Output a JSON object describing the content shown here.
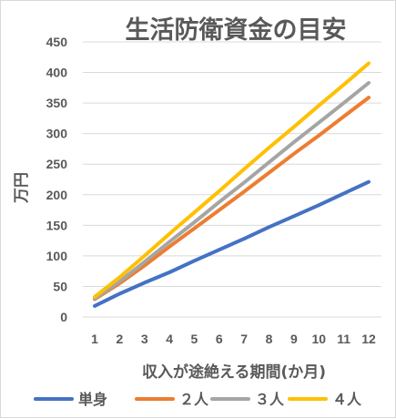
{
  "chart_data": {
    "type": "line",
    "title": "生活防衛資金の目安",
    "xlabel": "収入が途絶える期間(か月)",
    "ylabel": "万円",
    "x": [
      1,
      2,
      3,
      4,
      5,
      6,
      7,
      8,
      9,
      10,
      11,
      12
    ],
    "xticks": [
      "1",
      "2",
      "3",
      "4",
      "5",
      "6",
      "7",
      "8",
      "9",
      "10",
      "11",
      "12"
    ],
    "ylim": [
      0,
      450
    ],
    "yticks": [
      "0",
      "50",
      "100",
      "150",
      "200",
      "250",
      "300",
      "350",
      "400",
      "450"
    ],
    "grid": true,
    "legend_position": "bottom",
    "series": [
      {
        "name": "単身",
        "color": "#4472c4",
        "values": [
          18,
          38,
          56,
          73,
          92,
          110,
          128,
          147,
          165,
          183,
          202,
          221
        ]
      },
      {
        "name": "２人",
        "color": "#ed7d31",
        "values": [
          29,
          55,
          84,
          115,
          145,
          175,
          205,
          236,
          267,
          297,
          328,
          359
        ]
      },
      {
        "name": "３人",
        "color": "#a5a5a5",
        "values": [
          30,
          58,
          90,
          123,
          155,
          188,
          220,
          253,
          286,
          318,
          350,
          383
        ]
      },
      {
        "name": "４人",
        "color": "#ffc000",
        "values": [
          33,
          65,
          100,
          136,
          171,
          206,
          242,
          277,
          311,
          346,
          380,
          415
        ]
      }
    ]
  }
}
